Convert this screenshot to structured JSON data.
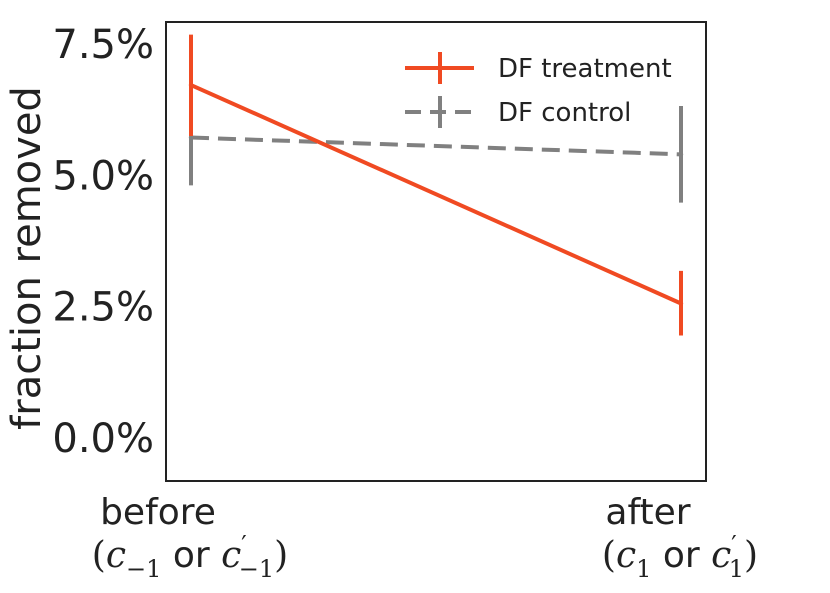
{
  "chart_data": {
    "type": "line",
    "title": "",
    "xlabel": "",
    "ylabel": "fraction removed",
    "categories": [
      {
        "label": "before",
        "sub_open": "(",
        "sub_var1": "c",
        "sub_index1": "−1",
        "sub_or": " or ",
        "sub_var2": "c",
        "sub_prime": "′",
        "sub_index2": "−1",
        "sub_close": ")"
      },
      {
        "label": "after",
        "sub_open": "(",
        "sub_var1": "c",
        "sub_index1": "1",
        "sub_or": " or ",
        "sub_var2": "c",
        "sub_prime": "′",
        "sub_index2": "1",
        "sub_close": ")"
      }
    ],
    "ylim": [
      -0.0082,
      0.0792
    ],
    "yticks": [
      {
        "value": 0.0,
        "label": "0.0%"
      },
      {
        "value": 0.025,
        "label": "2.5%"
      },
      {
        "value": 0.05,
        "label": "5.0%"
      },
      {
        "value": 0.075,
        "label": "7.5%"
      }
    ],
    "grid": false,
    "legend_position": "top-right",
    "series": [
      {
        "name": "DF treatment",
        "color": "#f04a22",
        "line_style": "solid",
        "values": [
          0.0672,
          0.0256
        ],
        "error_low": [
          0.0575,
          0.0195
        ],
        "error_high": [
          0.0768,
          0.0318
        ]
      },
      {
        "name": "DF control",
        "color": "#808080",
        "line_style": "dashed",
        "values": [
          0.0572,
          0.054
        ],
        "error_low": [
          0.0481,
          0.0448
        ],
        "error_high": [
          0.0662,
          0.0632
        ]
      }
    ]
  }
}
